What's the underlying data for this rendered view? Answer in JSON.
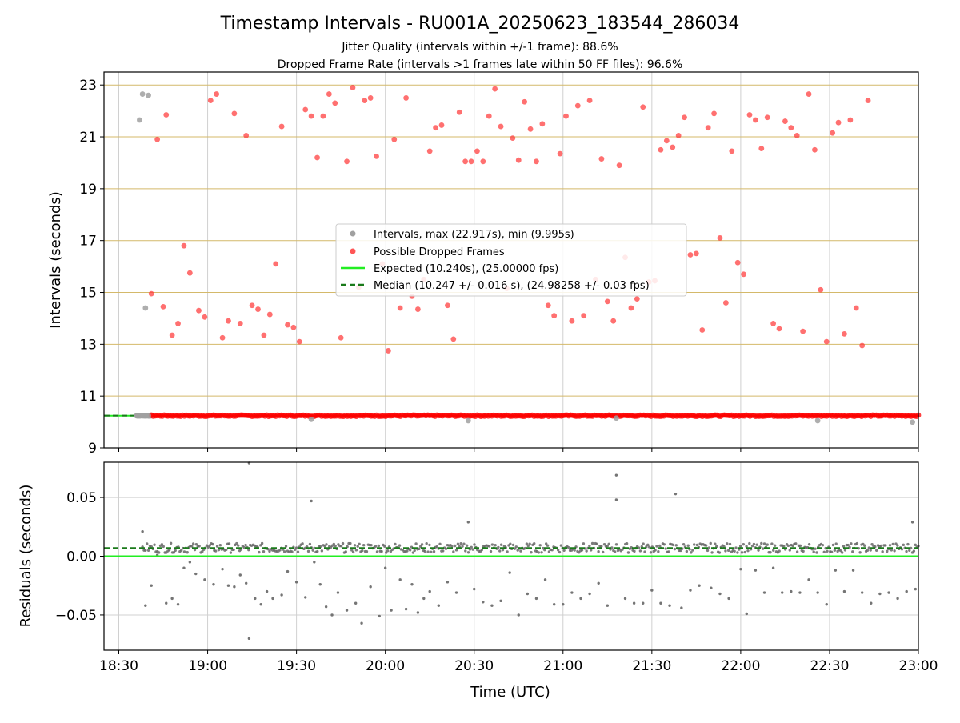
{
  "chart_data": [
    {
      "type": "scatter",
      "title": "Timestamp Intervals - RU001A_20250623_183544_286034",
      "subtitle_lines": [
        "Jitter Quality (intervals within +/-1 frame): 88.6%",
        "Dropped Frame Rate (intervals >1 frames late within 50 FF files): 96.6%"
      ],
      "xlabel": "",
      "ylabel": "Intervals (seconds)",
      "xlim": [
        "18:25",
        "23:00"
      ],
      "ylim": [
        9,
        23.5
      ],
      "yticks": [
        9,
        11,
        13,
        15,
        17,
        19,
        21,
        23
      ],
      "horizontal_grid_color": "#d4b96a",
      "grid": true,
      "legend_placement": "center",
      "legend": [
        {
          "label": "Intervals, max (22.917s), min (9.995s)",
          "kind": "gray-dot"
        },
        {
          "label": "Possible Dropped Frames",
          "kind": "red-dot"
        },
        {
          "label": "Expected (10.240s), (25.00000 fps)",
          "kind": "green-line"
        },
        {
          "label": "Median (10.247 +/- 0.016 s), (24.98258 +/- 0.03 fps)",
          "kind": "darkgreen-dashed"
        }
      ],
      "expected_interval": 10.24,
      "median_interval": 10.247,
      "series": [
        {
          "name": "Intervals, max (22.917s), min (9.995s)",
          "color": "#a0a0a0",
          "points": [
            [
              "18:37",
              21.65
            ],
            [
              "18:38",
              22.65
            ],
            [
              "18:39",
              14.4
            ],
            [
              "18:40",
              22.6
            ],
            [
              "18:36",
              10.24
            ],
            [
              "18:37",
              10.24
            ],
            [
              "18:38",
              10.24
            ],
            [
              "18:39",
              10.24
            ],
            [
              "18:40",
              10.24
            ],
            [
              "19:35",
              10.1
            ],
            [
              "20:28",
              10.05
            ],
            [
              "21:18",
              10.15
            ],
            [
              "22:26",
              10.05
            ],
            [
              "22:58",
              9.995
            ]
          ]
        },
        {
          "name": "Possible Dropped Frames",
          "color": "#ff3b3b",
          "points": [
            [
              "18:41",
              14.95
            ],
            [
              "18:43",
              20.9
            ],
            [
              "18:45",
              14.45
            ],
            [
              "18:46",
              21.85
            ],
            [
              "18:48",
              13.35
            ],
            [
              "18:50",
              13.8
            ],
            [
              "18:52",
              16.8
            ],
            [
              "18:54",
              15.75
            ],
            [
              "18:57",
              14.3
            ],
            [
              "18:59",
              14.05
            ],
            [
              "19:01",
              22.4
            ],
            [
              "19:03",
              22.65
            ],
            [
              "19:05",
              13.25
            ],
            [
              "19:07",
              13.9
            ],
            [
              "19:09",
              21.9
            ],
            [
              "19:11",
              13.8
            ],
            [
              "19:13",
              21.05
            ],
            [
              "19:15",
              14.5
            ],
            [
              "19:17",
              14.35
            ],
            [
              "19:19",
              13.35
            ],
            [
              "19:21",
              14.15
            ],
            [
              "19:23",
              16.1
            ],
            [
              "19:25",
              21.4
            ],
            [
              "19:27",
              13.75
            ],
            [
              "19:29",
              13.65
            ],
            [
              "19:31",
              13.1
            ],
            [
              "19:33",
              22.05
            ],
            [
              "19:35",
              21.8
            ],
            [
              "19:37",
              20.2
            ],
            [
              "19:39",
              21.8
            ],
            [
              "19:41",
              22.65
            ],
            [
              "19:43",
              22.3
            ],
            [
              "19:45",
              13.25
            ],
            [
              "19:47",
              20.05
            ],
            [
              "19:49",
              22.9
            ],
            [
              "19:51",
              15.2
            ],
            [
              "19:53",
              22.4
            ],
            [
              "19:55",
              22.5
            ],
            [
              "19:57",
              20.25
            ],
            [
              "19:59",
              16.1
            ],
            [
              "20:01",
              12.75
            ],
            [
              "20:03",
              20.9
            ],
            [
              "20:05",
              14.4
            ],
            [
              "20:07",
              22.5
            ],
            [
              "20:09",
              14.85
            ],
            [
              "20:11",
              14.35
            ],
            [
              "20:13",
              15.5
            ],
            [
              "20:15",
              20.45
            ],
            [
              "20:17",
              21.35
            ],
            [
              "20:19",
              21.45
            ],
            [
              "20:21",
              14.5
            ],
            [
              "20:23",
              13.2
            ],
            [
              "20:25",
              21.95
            ],
            [
              "20:27",
              20.05
            ],
            [
              "20:29",
              20.05
            ],
            [
              "20:31",
              20.45
            ],
            [
              "20:33",
              20.05
            ],
            [
              "20:35",
              21.8
            ],
            [
              "20:37",
              22.85
            ],
            [
              "20:39",
              21.4
            ],
            [
              "20:41",
              15.15
            ],
            [
              "20:43",
              20.95
            ],
            [
              "20:45",
              20.1
            ],
            [
              "20:47",
              22.35
            ],
            [
              "20:49",
              21.3
            ],
            [
              "20:51",
              20.05
            ],
            [
              "20:53",
              21.5
            ],
            [
              "20:55",
              14.5
            ],
            [
              "20:57",
              14.1
            ],
            [
              "20:59",
              20.35
            ],
            [
              "21:01",
              21.8
            ],
            [
              "21:03",
              13.9
            ],
            [
              "21:05",
              22.2
            ],
            [
              "21:07",
              14.1
            ],
            [
              "21:09",
              22.4
            ],
            [
              "21:11",
              15.5
            ],
            [
              "21:13",
              20.15
            ],
            [
              "21:15",
              14.65
            ],
            [
              "21:17",
              13.9
            ],
            [
              "21:19",
              19.9
            ],
            [
              "21:21",
              16.35
            ],
            [
              "21:23",
              14.4
            ],
            [
              "21:25",
              14.75
            ],
            [
              "21:27",
              22.15
            ],
            [
              "21:29",
              15.4
            ],
            [
              "21:31",
              15.45
            ],
            [
              "21:33",
              20.5
            ],
            [
              "21:35",
              20.85
            ],
            [
              "21:37",
              20.6
            ],
            [
              "21:39",
              21.05
            ],
            [
              "21:41",
              21.75
            ],
            [
              "21:43",
              16.45
            ],
            [
              "21:45",
              16.5
            ],
            [
              "21:47",
              13.55
            ],
            [
              "21:49",
              21.35
            ],
            [
              "21:51",
              21.9
            ],
            [
              "21:53",
              17.1
            ],
            [
              "21:55",
              14.6
            ],
            [
              "21:57",
              20.45
            ],
            [
              "21:59",
              16.15
            ],
            [
              "22:01",
              15.7
            ],
            [
              "22:03",
              21.85
            ],
            [
              "22:05",
              21.65
            ],
            [
              "22:07",
              20.55
            ],
            [
              "22:09",
              21.75
            ],
            [
              "22:11",
              13.8
            ],
            [
              "22:13",
              13.6
            ],
            [
              "22:15",
              21.6
            ],
            [
              "22:17",
              21.35
            ],
            [
              "22:19",
              21.05
            ],
            [
              "22:21",
              13.5
            ],
            [
              "22:23",
              22.65
            ],
            [
              "22:25",
              20.5
            ],
            [
              "22:27",
              15.1
            ],
            [
              "22:29",
              13.1
            ],
            [
              "22:31",
              21.15
            ],
            [
              "22:33",
              21.55
            ],
            [
              "22:35",
              13.4
            ],
            [
              "22:37",
              21.65
            ],
            [
              "22:39",
              14.4
            ],
            [
              "22:41",
              12.95
            ],
            [
              "22:43",
              22.4
            ]
          ]
        }
      ],
      "baseline_band": {
        "from": "18:41",
        "to": "23:00",
        "value": 10.24,
        "color": "#ff0000"
      }
    },
    {
      "type": "scatter",
      "xlabel": "Time (UTC)",
      "ylabel": "Residuals (seconds)",
      "xlim": [
        "18:25",
        "23:00"
      ],
      "xticks": [
        "18:30",
        "19:00",
        "19:30",
        "20:00",
        "20:30",
        "21:00",
        "21:30",
        "22:00",
        "22:30",
        "23:00"
      ],
      "ylim": [
        -0.08,
        0.08
      ],
      "yticks": [
        0.05,
        0.0,
        -0.05
      ],
      "ytick_labels": [
        "0.05",
        "0.00",
        "−0.05"
      ],
      "grid": true,
      "expected_residual": 0.0,
      "median_residual": 0.007,
      "series": [
        {
          "name": "",
          "color": "#666666",
          "band": {
            "from": "18:38",
            "to": "23:00",
            "center": 0.007,
            "spread": 0.004
          },
          "points": [
            [
              "18:38",
              0.021
            ],
            [
              "18:39",
              -0.042
            ],
            [
              "18:41",
              -0.025
            ],
            [
              "18:43",
              0.001
            ],
            [
              "18:46",
              -0.04
            ],
            [
              "18:48",
              -0.036
            ],
            [
              "18:50",
              -0.041
            ],
            [
              "18:52",
              -0.01
            ],
            [
              "18:54",
              -0.005
            ],
            [
              "18:56",
              -0.015
            ],
            [
              "18:59",
              -0.02
            ],
            [
              "19:02",
              -0.024
            ],
            [
              "19:05",
              -0.011
            ],
            [
              "19:07",
              -0.025
            ],
            [
              "19:09",
              -0.026
            ],
            [
              "19:11",
              -0.016
            ],
            [
              "19:13",
              -0.023
            ],
            [
              "19:14",
              0.081
            ],
            [
              "19:14",
              -0.07
            ],
            [
              "19:16",
              -0.036
            ],
            [
              "19:18",
              -0.041
            ],
            [
              "19:20",
              -0.03
            ],
            [
              "19:22",
              -0.036
            ],
            [
              "19:25",
              -0.033
            ],
            [
              "19:27",
              -0.013
            ],
            [
              "19:30",
              -0.022
            ],
            [
              "19:33",
              -0.035
            ],
            [
              "19:35",
              0.047
            ],
            [
              "19:36",
              -0.005
            ],
            [
              "19:38",
              -0.024
            ],
            [
              "19:40",
              -0.043
            ],
            [
              "19:42",
              -0.05
            ],
            [
              "19:44",
              -0.031
            ],
            [
              "19:47",
              -0.046
            ],
            [
              "19:50",
              -0.04
            ],
            [
              "19:52",
              -0.057
            ],
            [
              "19:55",
              -0.026
            ],
            [
              "19:58",
              -0.051
            ],
            [
              "20:00",
              -0.01
            ],
            [
              "20:02",
              -0.046
            ],
            [
              "20:05",
              -0.02
            ],
            [
              "20:07",
              -0.045
            ],
            [
              "20:09",
              -0.024
            ],
            [
              "20:11",
              -0.048
            ],
            [
              "20:13",
              -0.036
            ],
            [
              "20:15",
              -0.03
            ],
            [
              "20:18",
              -0.042
            ],
            [
              "20:21",
              -0.022
            ],
            [
              "20:24",
              -0.031
            ],
            [
              "20:28",
              0.029
            ],
            [
              "20:30",
              -0.028
            ],
            [
              "20:33",
              -0.039
            ],
            [
              "20:36",
              -0.042
            ],
            [
              "20:39",
              -0.038
            ],
            [
              "20:42",
              -0.014
            ],
            [
              "20:45",
              -0.05
            ],
            [
              "20:48",
              -0.032
            ],
            [
              "20:51",
              -0.036
            ],
            [
              "20:54",
              -0.02
            ],
            [
              "20:57",
              -0.041
            ],
            [
              "21:00",
              -0.041
            ],
            [
              "21:03",
              -0.031
            ],
            [
              "21:06",
              -0.036
            ],
            [
              "21:09",
              -0.032
            ],
            [
              "21:12",
              -0.023
            ],
            [
              "21:15",
              -0.042
            ],
            [
              "21:18",
              0.069
            ],
            [
              "21:18",
              0.048
            ],
            [
              "21:21",
              -0.036
            ],
            [
              "21:24",
              -0.04
            ],
            [
              "21:27",
              -0.04
            ],
            [
              "21:30",
              -0.029
            ],
            [
              "21:33",
              -0.04
            ],
            [
              "21:36",
              -0.042
            ],
            [
              "21:38",
              0.053
            ],
            [
              "21:40",
              -0.044
            ],
            [
              "21:43",
              -0.029
            ],
            [
              "21:46",
              -0.025
            ],
            [
              "21:50",
              -0.027
            ],
            [
              "21:53",
              -0.032
            ],
            [
              "21:56",
              -0.036
            ],
            [
              "22:00",
              -0.011
            ],
            [
              "22:02",
              -0.049
            ],
            [
              "22:05",
              -0.012
            ],
            [
              "22:08",
              -0.031
            ],
            [
              "22:11",
              -0.01
            ],
            [
              "22:14",
              -0.031
            ],
            [
              "22:17",
              -0.03
            ],
            [
              "22:20",
              -0.031
            ],
            [
              "22:23",
              -0.02
            ],
            [
              "22:26",
              -0.031
            ],
            [
              "22:29",
              -0.041
            ],
            [
              "22:32",
              -0.012
            ],
            [
              "22:35",
              -0.03
            ],
            [
              "22:38",
              -0.012
            ],
            [
              "22:41",
              -0.031
            ],
            [
              "22:44",
              -0.04
            ],
            [
              "22:47",
              -0.032
            ],
            [
              "22:50",
              -0.031
            ],
            [
              "22:53",
              -0.036
            ],
            [
              "22:56",
              -0.03
            ],
            [
              "22:58",
              0.029
            ],
            [
              "22:59",
              -0.028
            ]
          ]
        }
      ]
    }
  ]
}
